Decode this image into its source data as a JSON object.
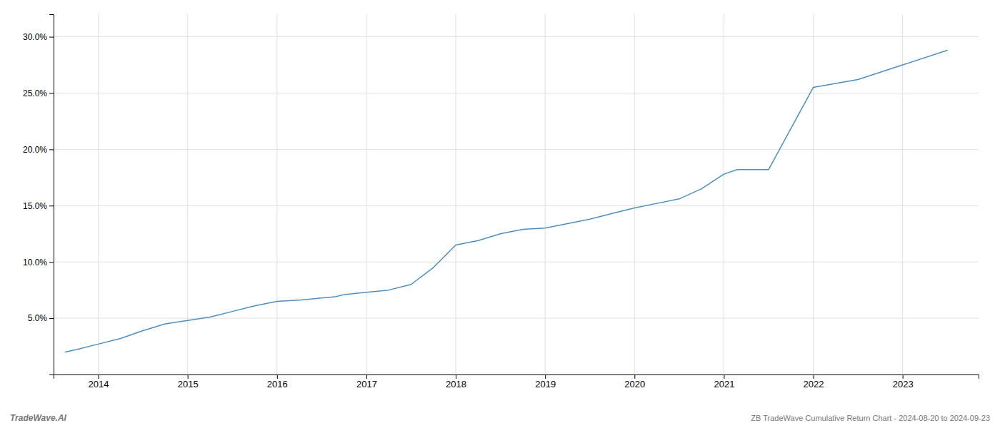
{
  "chart_data": {
    "type": "line",
    "x": [
      2013.63,
      2013.75,
      2014.0,
      2014.25,
      2014.5,
      2014.75,
      2015.0,
      2015.25,
      2015.5,
      2015.75,
      2016.0,
      2016.25,
      2016.5,
      2016.65,
      2016.75,
      2017.0,
      2017.25,
      2017.5,
      2017.75,
      2018.0,
      2018.25,
      2018.5,
      2018.75,
      2019.0,
      2019.25,
      2019.5,
      2019.75,
      2020.0,
      2020.25,
      2020.5,
      2020.75,
      2021.0,
      2021.15,
      2021.5,
      2022.0,
      2022.5,
      2023.0,
      2023.5
    ],
    "values": [
      2.0,
      2.2,
      2.7,
      3.2,
      3.9,
      4.5,
      4.8,
      5.1,
      5.6,
      6.1,
      6.5,
      6.6,
      6.8,
      6.9,
      7.1,
      7.3,
      7.5,
      8.0,
      9.5,
      11.5,
      11.9,
      12.5,
      12.9,
      13.0,
      13.4,
      13.8,
      14.3,
      14.8,
      15.2,
      15.6,
      16.5,
      17.8,
      18.2,
      18.2,
      25.5,
      26.2,
      27.5,
      28.8
    ],
    "color": "#4a90c4",
    "xlim": [
      2013.5,
      2023.85
    ],
    "xticks": [
      2014,
      2015,
      2016,
      2017,
      2018,
      2019,
      2020,
      2021,
      2022,
      2023
    ],
    "ylim": [
      0.0,
      32.0
    ],
    "yticks": [
      {
        "value": 5.0,
        "label": "5.0%"
      },
      {
        "value": 10.0,
        "label": "10.0%"
      },
      {
        "value": 15.0,
        "label": "15.0%"
      },
      {
        "value": 20.0,
        "label": "20.0%"
      },
      {
        "value": 25.0,
        "label": "25.0%"
      },
      {
        "value": 30.0,
        "label": "30.0%"
      }
    ],
    "grid": true,
    "annotations": [
      "TradeWave.AI",
      "ZB TradeWave Cumulative Return Chart - 2024-08-20 to 2024-09-23"
    ]
  }
}
